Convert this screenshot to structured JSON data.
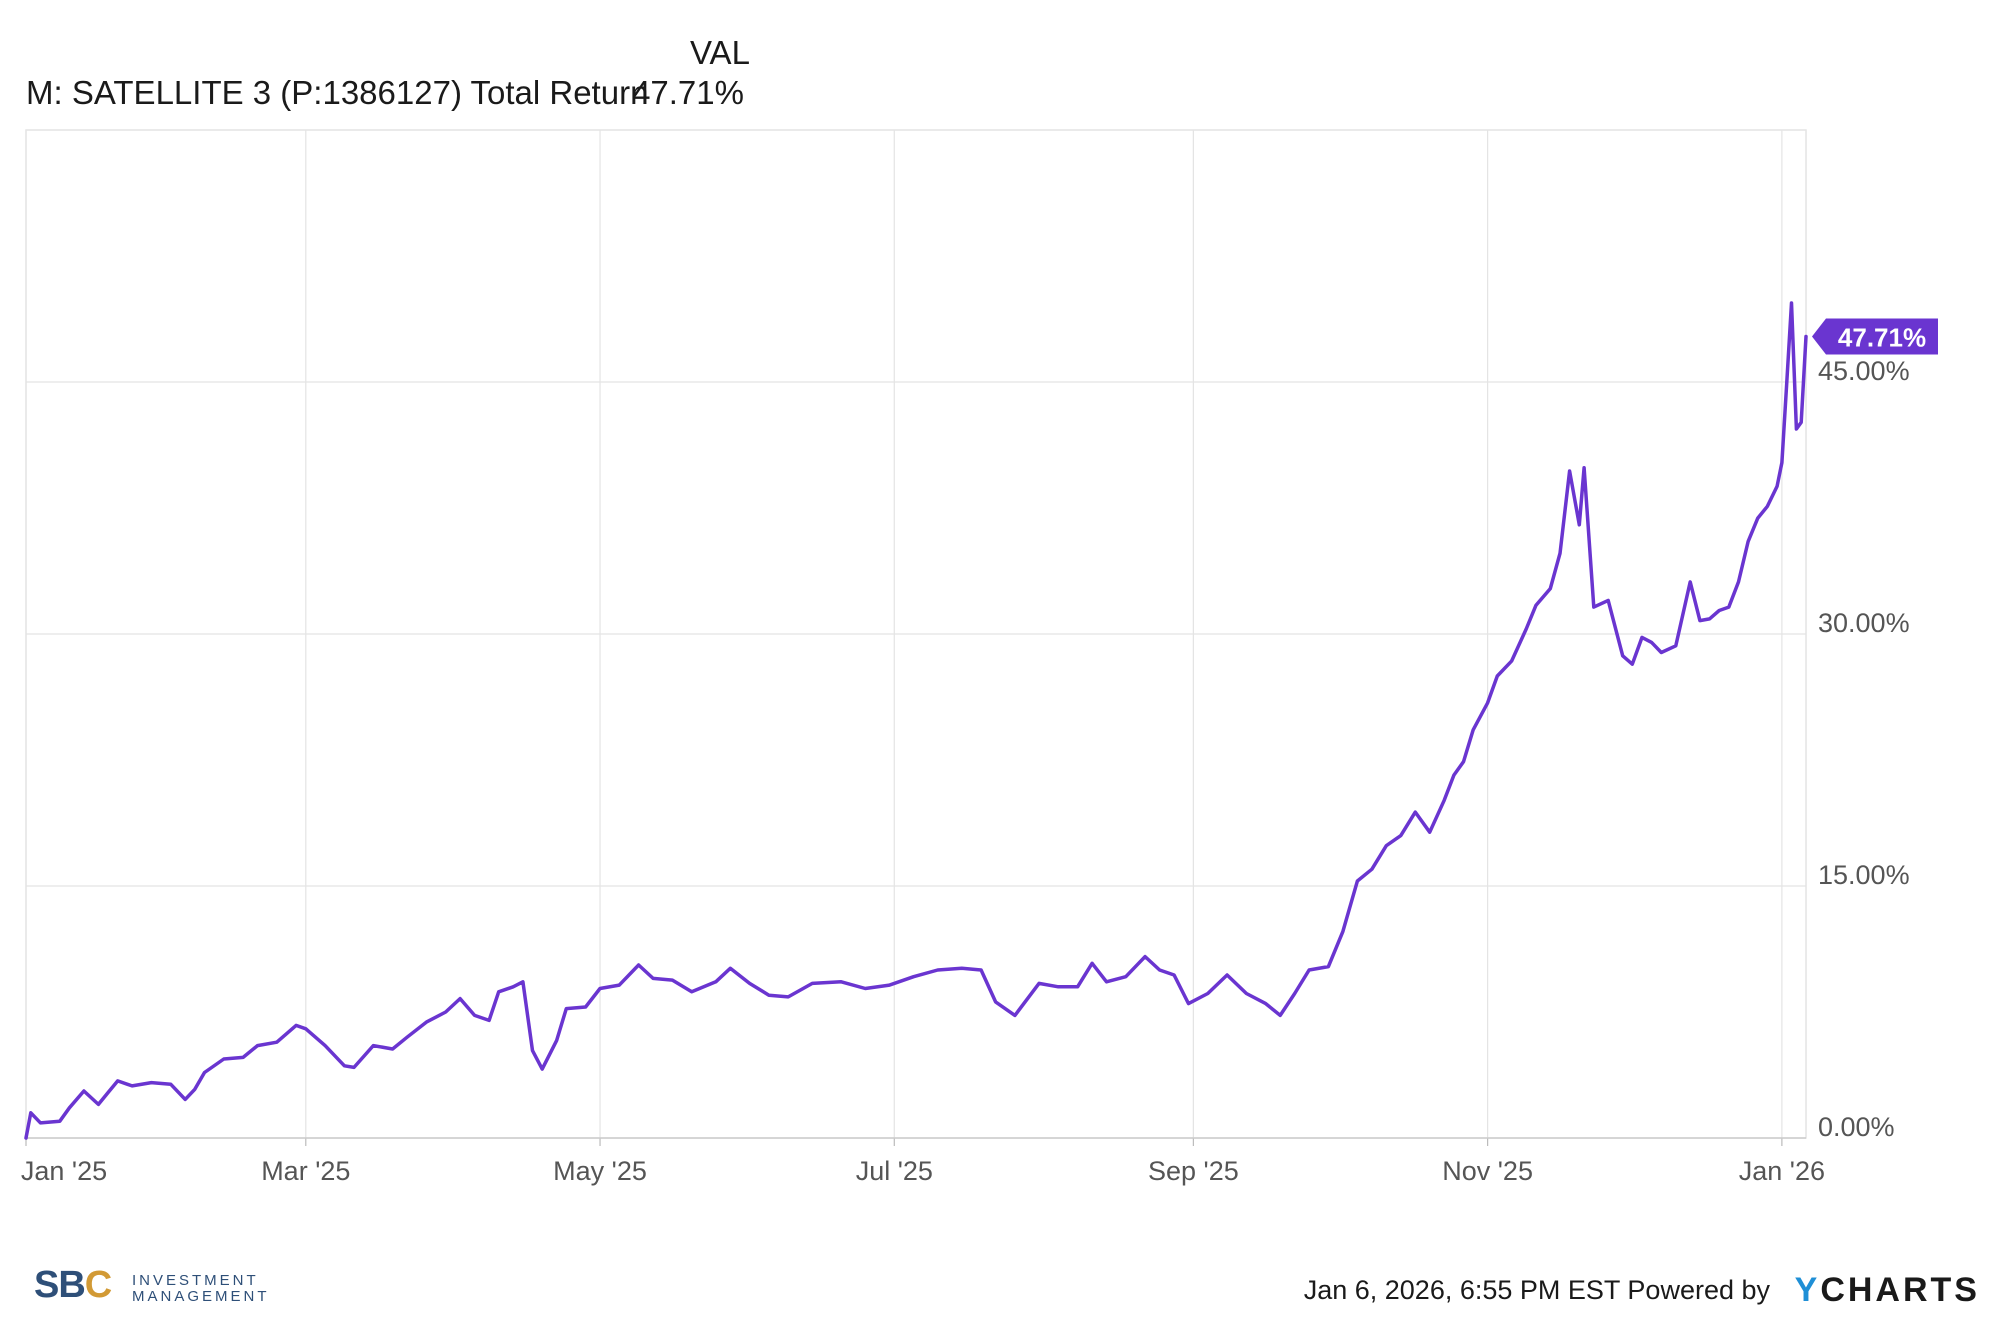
{
  "legend": {
    "column_header": "VAL",
    "series_label": "M: SATELLITE 3 (P:1386127) Total Return",
    "series_value": "47.71%"
  },
  "footer": {
    "timestamp": "Jan 6, 2026, 6:55 PM EST Powered by",
    "brand_y": "Y",
    "brand_rest": "CHARTS"
  },
  "logo": {
    "mark_left": "SB",
    "mark_right": "C",
    "line1": "INVESTMENT",
    "line2": "MANAGEMENT"
  },
  "colors": {
    "series": "#6a35d0",
    "grid": "#e4e4e4",
    "axis_text": "#555555",
    "brand_blue": "#1f8fd6"
  },
  "chart_data": {
    "type": "line",
    "title": "",
    "xlabel": "",
    "ylabel": "",
    "x_tick_labels": [
      "Jan '25",
      "Mar '25",
      "May '25",
      "Jul '25",
      "Sep '25",
      "Nov '25",
      "Jan '26"
    ],
    "y_tick_labels": [
      "0.00%",
      "15.00%",
      "30.00%",
      "45.00%"
    ],
    "y_ticks": [
      0,
      15,
      30,
      45
    ],
    "ylim": [
      0,
      60
    ],
    "xlim": [
      "2025-01-02",
      "2026-01-06"
    ],
    "grid": true,
    "end_label": "47.71%",
    "series": [
      {
        "name": "M: SATELLITE 3 (P:1386127) Total Return",
        "points": [
          [
            "2025-01-02",
            0.0
          ],
          [
            "2025-01-03",
            1.5
          ],
          [
            "2025-01-05",
            0.9
          ],
          [
            "2025-01-09",
            1.0
          ],
          [
            "2025-01-11",
            1.8
          ],
          [
            "2025-01-14",
            2.8
          ],
          [
            "2025-01-17",
            2.0
          ],
          [
            "2025-01-19",
            2.7
          ],
          [
            "2025-01-21",
            3.4
          ],
          [
            "2025-01-24",
            3.1
          ],
          [
            "2025-01-28",
            3.3
          ],
          [
            "2025-02-01",
            3.2
          ],
          [
            "2025-02-04",
            2.3
          ],
          [
            "2025-02-06",
            2.9
          ],
          [
            "2025-02-08",
            3.9
          ],
          [
            "2025-02-12",
            4.7
          ],
          [
            "2025-02-16",
            4.8
          ],
          [
            "2025-02-19",
            5.5
          ],
          [
            "2025-02-23",
            5.7
          ],
          [
            "2025-02-27",
            6.7
          ],
          [
            "2025-03-01",
            6.5
          ],
          [
            "2025-03-05",
            5.5
          ],
          [
            "2025-03-09",
            4.3
          ],
          [
            "2025-03-11",
            4.2
          ],
          [
            "2025-03-15",
            5.5
          ],
          [
            "2025-03-19",
            5.3
          ],
          [
            "2025-03-22",
            6.0
          ],
          [
            "2025-03-26",
            6.9
          ],
          [
            "2025-03-30",
            7.5
          ],
          [
            "2025-04-02",
            8.3
          ],
          [
            "2025-04-05",
            7.3
          ],
          [
            "2025-04-08",
            7.0
          ],
          [
            "2025-04-10",
            8.7
          ],
          [
            "2025-04-13",
            9.0
          ],
          [
            "2025-04-15",
            9.3
          ],
          [
            "2025-04-17",
            5.2
          ],
          [
            "2025-04-19",
            4.1
          ],
          [
            "2025-04-22",
            5.8
          ],
          [
            "2025-04-24",
            7.7
          ],
          [
            "2025-04-28",
            7.8
          ],
          [
            "2025-05-01",
            8.9
          ],
          [
            "2025-05-05",
            9.1
          ],
          [
            "2025-05-09",
            10.3
          ],
          [
            "2025-05-12",
            9.5
          ],
          [
            "2025-05-16",
            9.4
          ],
          [
            "2025-05-20",
            8.7
          ],
          [
            "2025-05-25",
            9.3
          ],
          [
            "2025-05-28",
            10.1
          ],
          [
            "2025-06-01",
            9.2
          ],
          [
            "2025-06-05",
            8.5
          ],
          [
            "2025-06-09",
            8.4
          ],
          [
            "2025-06-14",
            9.2
          ],
          [
            "2025-06-20",
            9.3
          ],
          [
            "2025-06-25",
            8.9
          ],
          [
            "2025-06-30",
            9.1
          ],
          [
            "2025-07-05",
            9.6
          ],
          [
            "2025-07-10",
            10.0
          ],
          [
            "2025-07-15",
            10.1
          ],
          [
            "2025-07-19",
            10.0
          ],
          [
            "2025-07-22",
            8.1
          ],
          [
            "2025-07-26",
            7.3
          ],
          [
            "2025-07-31",
            9.2
          ],
          [
            "2025-08-04",
            9.0
          ],
          [
            "2025-08-08",
            9.0
          ],
          [
            "2025-08-11",
            10.4
          ],
          [
            "2025-08-14",
            9.3
          ],
          [
            "2025-08-18",
            9.6
          ],
          [
            "2025-08-22",
            10.8
          ],
          [
            "2025-08-25",
            10.0
          ],
          [
            "2025-08-28",
            9.7
          ],
          [
            "2025-08-31",
            8.0
          ],
          [
            "2025-09-04",
            8.6
          ],
          [
            "2025-09-08",
            9.7
          ],
          [
            "2025-09-12",
            8.6
          ],
          [
            "2025-09-16",
            8.0
          ],
          [
            "2025-09-19",
            7.3
          ],
          [
            "2025-09-22",
            8.6
          ],
          [
            "2025-09-25",
            10.0
          ],
          [
            "2025-09-29",
            10.2
          ],
          [
            "2025-10-02",
            12.3
          ],
          [
            "2025-10-05",
            15.3
          ],
          [
            "2025-10-08",
            16.0
          ],
          [
            "2025-10-11",
            17.4
          ],
          [
            "2025-10-14",
            18.0
          ],
          [
            "2025-10-17",
            19.4
          ],
          [
            "2025-10-20",
            18.2
          ],
          [
            "2025-10-23",
            20.1
          ],
          [
            "2025-10-25",
            21.6
          ],
          [
            "2025-10-27",
            22.4
          ],
          [
            "2025-10-29",
            24.3
          ],
          [
            "2025-11-01",
            25.9
          ],
          [
            "2025-11-03",
            27.5
          ],
          [
            "2025-11-06",
            28.4
          ],
          [
            "2025-11-09",
            30.3
          ],
          [
            "2025-11-11",
            31.7
          ],
          [
            "2025-11-14",
            32.7
          ],
          [
            "2025-11-16",
            34.8
          ],
          [
            "2025-11-18",
            39.7
          ],
          [
            "2025-11-20",
            36.5
          ],
          [
            "2025-11-21",
            39.9
          ],
          [
            "2025-11-23",
            31.6
          ],
          [
            "2025-11-26",
            32.0
          ],
          [
            "2025-11-29",
            28.7
          ],
          [
            "2025-12-01",
            28.2
          ],
          [
            "2025-12-03",
            29.8
          ],
          [
            "2025-12-05",
            29.5
          ],
          [
            "2025-12-07",
            28.9
          ],
          [
            "2025-12-10",
            29.3
          ],
          [
            "2025-12-13",
            33.1
          ],
          [
            "2025-12-15",
            30.8
          ],
          [
            "2025-12-17",
            30.9
          ],
          [
            "2025-12-19",
            31.4
          ],
          [
            "2025-12-21",
            31.6
          ],
          [
            "2025-12-23",
            33.1
          ],
          [
            "2025-12-25",
            35.5
          ],
          [
            "2025-12-27",
            36.9
          ],
          [
            "2025-12-29",
            37.6
          ],
          [
            "2025-12-31",
            38.8
          ],
          [
            "2026-01-01",
            40.2
          ],
          [
            "2026-01-02",
            44.9
          ],
          [
            "2026-01-03",
            49.7
          ],
          [
            "2026-01-04",
            42.2
          ],
          [
            "2026-01-05",
            42.6
          ],
          [
            "2026-01-06",
            47.71
          ]
        ]
      }
    ]
  }
}
